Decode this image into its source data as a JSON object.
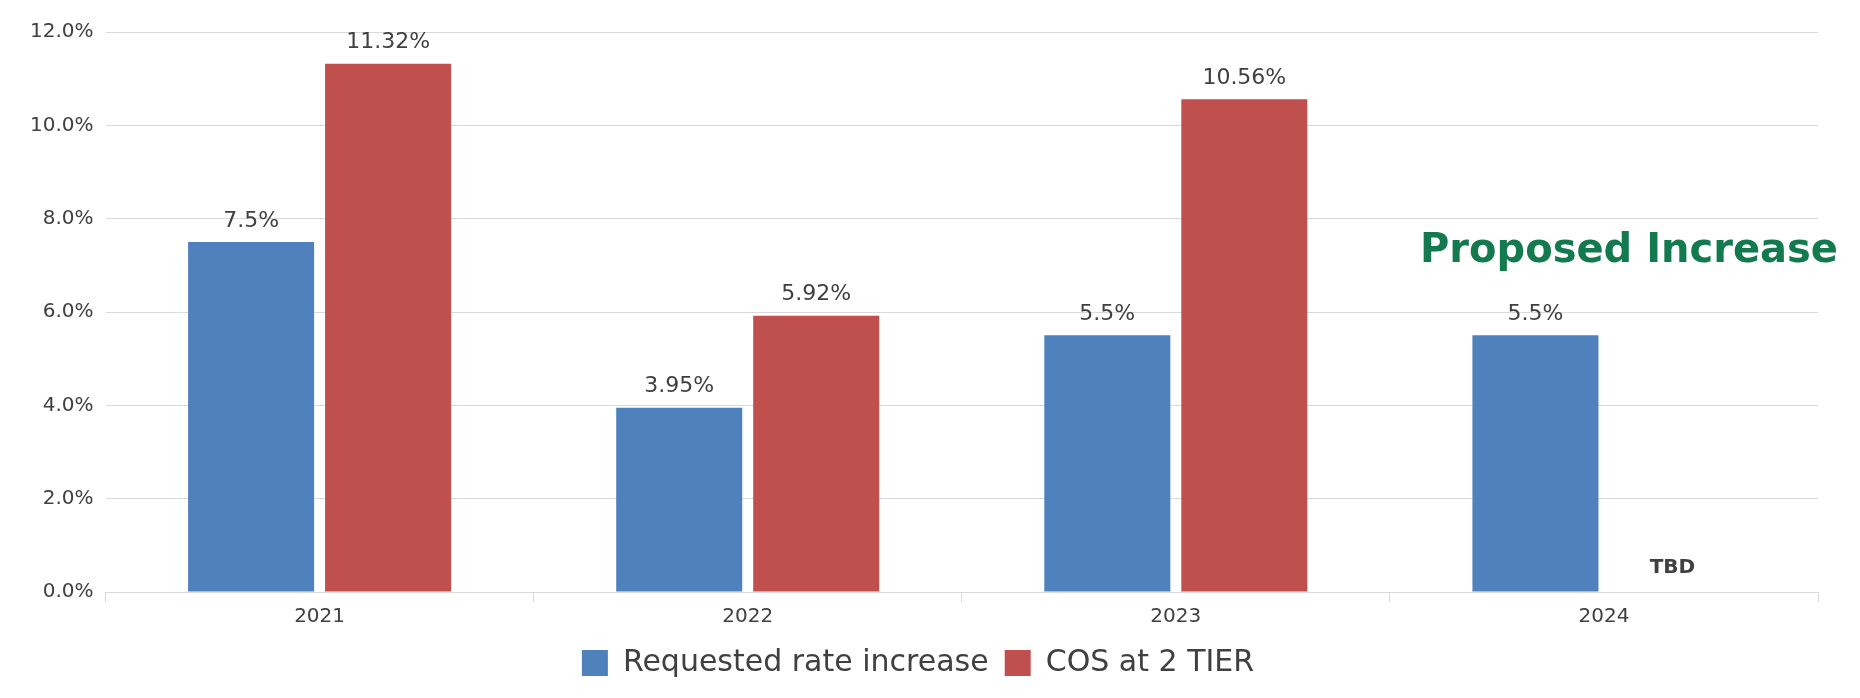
{
  "chart_data": {
    "type": "bar",
    "categories": [
      "2021",
      "2022",
      "2023",
      "2024"
    ],
    "series": [
      {
        "name": "Requested rate increase",
        "color": "#4f81bd",
        "values": [
          7.5,
          3.95,
          5.5,
          5.5
        ],
        "value_labels": [
          "7.5%",
          "3.95%",
          "5.5%",
          "5.5%"
        ]
      },
      {
        "name": "COS at 2 TIER",
        "color": "#c0504d",
        "values": [
          11.32,
          5.92,
          10.56,
          null
        ],
        "value_labels": [
          "11.32%",
          "5.92%",
          "10.56%",
          null
        ]
      }
    ],
    "ylim": [
      0,
      12
    ],
    "yticks": [
      {
        "value": 0,
        "label": "0.0%"
      },
      {
        "value": 2,
        "label": "2.0%"
      },
      {
        "value": 4,
        "label": "4.0%"
      },
      {
        "value": 6,
        "label": "6.0%"
      },
      {
        "value": 8,
        "label": "8.0%"
      },
      {
        "value": 10,
        "label": "10.0%"
      },
      {
        "value": 12,
        "label": "12.0%"
      }
    ],
    "grid": "y",
    "legend": "bottom",
    "annotations": [
      "Proposed Increase",
      "TBD"
    ]
  }
}
